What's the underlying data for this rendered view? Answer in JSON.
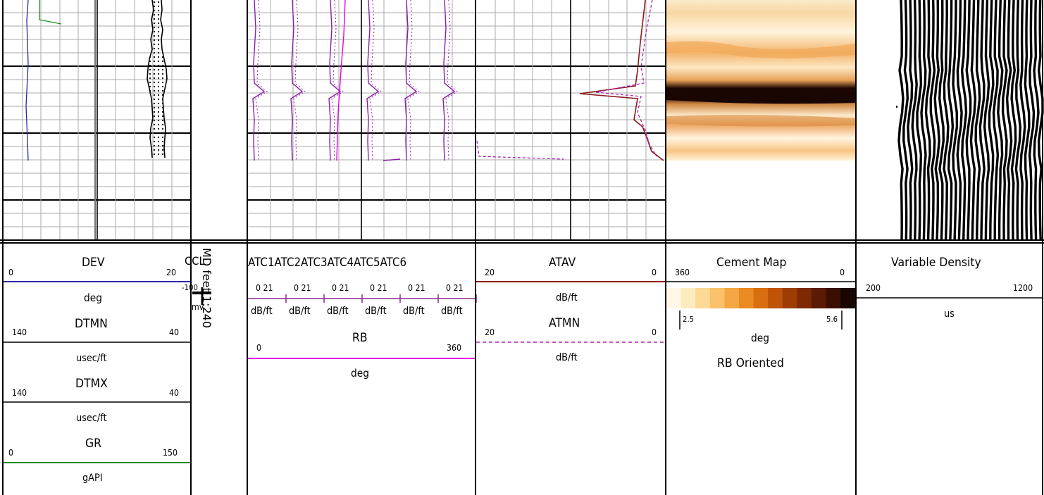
{
  "chart_data": [
    {
      "type": "line",
      "track": "depth-deviation",
      "curves": [
        {
          "name": "DEV",
          "unit": "deg",
          "left": "0",
          "right": "20",
          "color": "#2a2aa8"
        },
        {
          "name": "DTMN",
          "unit": "usec/ft",
          "left": "140",
          "right": "40",
          "color": "#000000"
        },
        {
          "name": "DTMX",
          "unit": "usec/ft",
          "left": "140",
          "right": "40",
          "color": "#000000"
        },
        {
          "name": "GR",
          "unit": "gAPI",
          "left": "0",
          "right": "150",
          "color": "#1f8a1f"
        }
      ]
    },
    {
      "type": "line",
      "track": "ccl",
      "curves": [
        {
          "name": "CCL",
          "left": "-100",
          "unit": "mv"
        }
      ],
      "depth_label": "MD feet 1:240"
    },
    {
      "type": "line",
      "track": "attenuation-channels",
      "curves": [
        {
          "name": "ATC1",
          "scale": "0   21",
          "unit": "dB/ft"
        },
        {
          "name": "ATC2",
          "scale": "0   21",
          "unit": "dB/ft"
        },
        {
          "name": "ATC3",
          "scale": "0   21",
          "unit": "dB/ft"
        },
        {
          "name": "ATC4",
          "scale": "0   21",
          "unit": "dB/ft"
        },
        {
          "name": "ATC5",
          "scale": "0   21",
          "unit": "dB/ft"
        },
        {
          "name": "ATC6",
          "scale": "0   21",
          "unit": "dB/ft"
        },
        {
          "name": "RB",
          "unit": "deg",
          "left": "0",
          "right": "360",
          "color": "#e400e4"
        }
      ]
    },
    {
      "type": "line",
      "track": "attenuation",
      "curves": [
        {
          "name": "ATAV",
          "unit": "dB/ft",
          "left": "20",
          "right": "0",
          "color": "#8b1a1a"
        },
        {
          "name": "ATMN",
          "unit": "dB/ft",
          "left": "20",
          "right": "0",
          "color": "#b020b0"
        }
      ]
    },
    {
      "type": "heatmap",
      "track": "cement-map",
      "title": "Cement Map",
      "left": "360",
      "right": "0",
      "scale_min": "2.5",
      "scale_max": "5.6",
      "unit": "deg",
      "subtitle": "RB Oriented",
      "colors": [
        "#fff8e6",
        "#fdebc0",
        "#fcd994",
        "#f9c26a",
        "#f4a742",
        "#ea8a22",
        "#d96e10",
        "#bf5308",
        "#9e3c05",
        "#7c2904",
        "#5a1a03",
        "#3a0f02",
        "#1a0600"
      ]
    },
    {
      "type": "heatmap",
      "track": "vdl",
      "title": "Variable Density",
      "left": "200",
      "right": "1200",
      "unit": "us"
    }
  ],
  "headers": {
    "dev": {
      "name": "DEV",
      "left": "0",
      "right": "20",
      "unit": "deg"
    },
    "dtmn": {
      "name": "DTMN",
      "left": "140",
      "right": "40",
      "unit": "usec/ft"
    },
    "dtmx": {
      "name": "DTMX",
      "left": "140",
      "right": "40",
      "unit": "usec/ft"
    },
    "gr": {
      "name": "GR",
      "left": "0",
      "right": "150",
      "unit": "gAPI"
    },
    "ccl": {
      "name": "CCL",
      "scale": "-100",
      "unit": "mv"
    },
    "depth": "MD feet 1:240",
    "atc_names": "ATC1ATC2ATC3ATC4ATC5ATC6",
    "atc_scale": "0   21",
    "atc_unit": "dB/ft",
    "rb": {
      "name": "RB",
      "left": "0",
      "right": "360",
      "unit": "deg"
    },
    "atav": {
      "name": "ATAV",
      "left": "20",
      "right": "0",
      "unit": "dB/ft"
    },
    "atmn": {
      "name": "ATMN",
      "left": "20",
      "right": "0",
      "unit": "dB/ft"
    },
    "cement": {
      "name": "Cement Map",
      "left": "360",
      "right": "0",
      "min": "2.5",
      "max": "5.6",
      "unit": "deg",
      "sub": "RB Oriented"
    },
    "vdl": {
      "name": "Variable Density",
      "left": "200",
      "right": "1200",
      "unit": "us"
    }
  }
}
